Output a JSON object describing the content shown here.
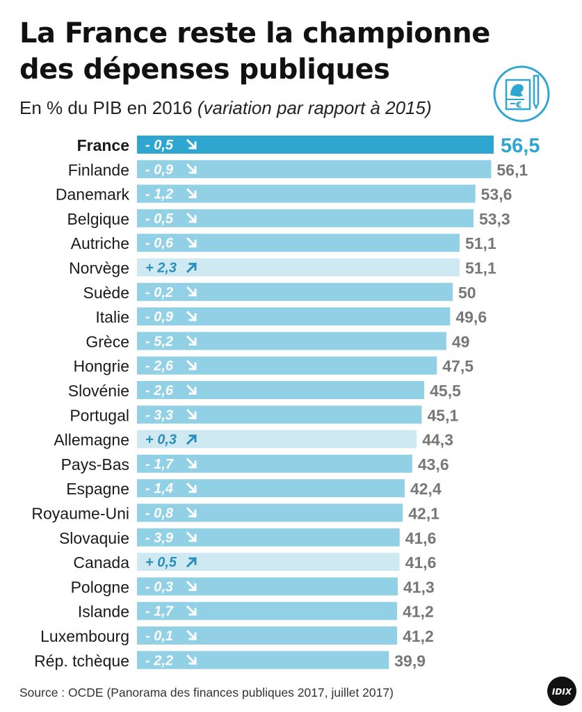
{
  "header": {
    "title_line1": "La France reste la championne",
    "title_line2": "des dépenses publiques",
    "subtitle_main": "En % du PIB en 2016",
    "subtitle_note": "(variation par rapport à 2015)"
  },
  "logo_icon": "document-marianne-euro-pen-icon",
  "footer": {
    "source": "Source : OCDE (Panorama des finances publiques 2017, juillet 2017)",
    "brand": "IDIX"
  },
  "colors": {
    "highlight_bar": "#2fa6cf",
    "bar": "#92d1e5",
    "bar_increase": "#cfe9f3",
    "highlight_value": "#2fa6cf",
    "value": "#777777",
    "change_decrease": "#ffffff",
    "change_increase": "#2a8fba"
  },
  "chart_data": {
    "type": "bar",
    "orientation": "horizontal",
    "highlight": "France",
    "categories": [
      "France",
      "Finlande",
      "Danemark",
      "Belgique",
      "Autriche",
      "Norvège",
      "Suède",
      "Italie",
      "Grèce",
      "Hongrie",
      "Slovénie",
      "Portugal",
      "Allemagne",
      "Pays-Bas",
      "Espagne",
      "Royaume-Uni",
      "Slovaquie",
      "Canada",
      "Pologne",
      "Islande",
      "Luxembourg",
      "Rép. tchèque"
    ],
    "values": [
      56.5,
      56.1,
      53.6,
      53.3,
      51.1,
      51.1,
      50,
      49.6,
      49,
      47.5,
      45.5,
      45.1,
      44.3,
      43.6,
      42.4,
      42.1,
      41.6,
      41.6,
      41.3,
      41.2,
      41.2,
      39.9
    ],
    "value_labels": [
      "56,5",
      "56,1",
      "53,6",
      "53,3",
      "51,1",
      "51,1",
      "50",
      "49,6",
      "49",
      "47,5",
      "45,5",
      "45,1",
      "44,3",
      "43,6",
      "42,4",
      "42,1",
      "41,6",
      "41,6",
      "41,3",
      "41,2",
      "41,2",
      "39,9"
    ],
    "change_labels": [
      "- 0,5",
      "- 0,9",
      "- 1,2",
      "- 0,5",
      "- 0,6",
      "+ 2,3",
      "- 0,2",
      "- 0,9",
      "- 5,2",
      "- 2,6",
      "- 2,6",
      "- 3,3",
      "+ 0,3",
      "- 1,7",
      "- 1,4",
      "- 0,8",
      "- 3,9",
      "+ 0,5",
      "- 0,3",
      "- 1,7",
      "- 0,1",
      "- 2,2"
    ],
    "change_direction": [
      "down",
      "down",
      "down",
      "down",
      "down",
      "up",
      "down",
      "down",
      "down",
      "down",
      "down",
      "down",
      "up",
      "down",
      "down",
      "down",
      "down",
      "up",
      "down",
      "down",
      "down",
      "down"
    ],
    "xlim": [
      0,
      56.5
    ]
  }
}
